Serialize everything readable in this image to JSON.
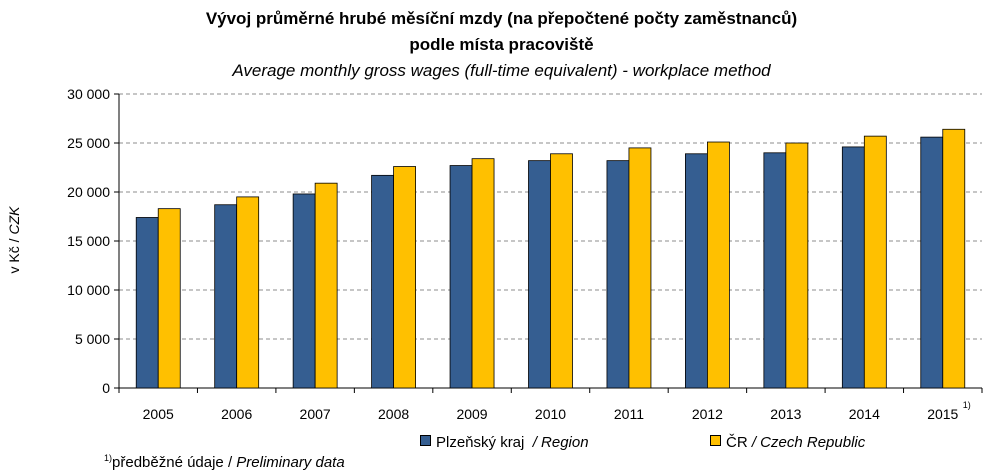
{
  "chart_data": {
    "type": "bar",
    "title": "Vývoj průměrné hrubé měsíční mzdy (na přepočtené počty zaměstnanců)",
    "title_line2": "podle místa pracoviště",
    "subtitle": "Average monthly gross wages (full-time equivalent) - workplace method",
    "ylabel": "v Kč / CZK",
    "ylabel_cz": "v Kč",
    "ylabel_sep": " / ",
    "ylabel_en": "CZK",
    "xlabel": "",
    "ylim": [
      0,
      30000
    ],
    "yticks": [
      0,
      5000,
      10000,
      15000,
      20000,
      25000,
      30000
    ],
    "ytick_labels": [
      "0",
      "5 000",
      "10 000",
      "15 000",
      "20 000",
      "25 000",
      "30 000"
    ],
    "grid": "horizontal-dashed",
    "legend_position": "bottom",
    "categories": [
      "2005",
      "2006",
      "2007",
      "2008",
      "2009",
      "2010",
      "2011",
      "2012",
      "2013",
      "2014",
      "2015"
    ],
    "last_category_note": "1)",
    "series": [
      {
        "name": "Plzeňský kraj / Region",
        "name_cz": "Plzeňský kraj",
        "name_en": "/ Region",
        "color": "#355E91",
        "values": [
          17400,
          18700,
          19800,
          21700,
          22700,
          23200,
          23200,
          23900,
          24000,
          24600,
          25600
        ]
      },
      {
        "name": "ČR / Czech Republic",
        "name_cz": "ČR",
        "name_en": "/ Czech Republic",
        "color": "#FFC000",
        "values": [
          18300,
          19500,
          20900,
          22600,
          23400,
          23900,
          24500,
          25100,
          25000,
          25700,
          26400
        ]
      }
    ]
  },
  "footnote": {
    "mark": "1)",
    "text_cz": "předběžné údaje /",
    "text_en": "Preliminary data"
  }
}
